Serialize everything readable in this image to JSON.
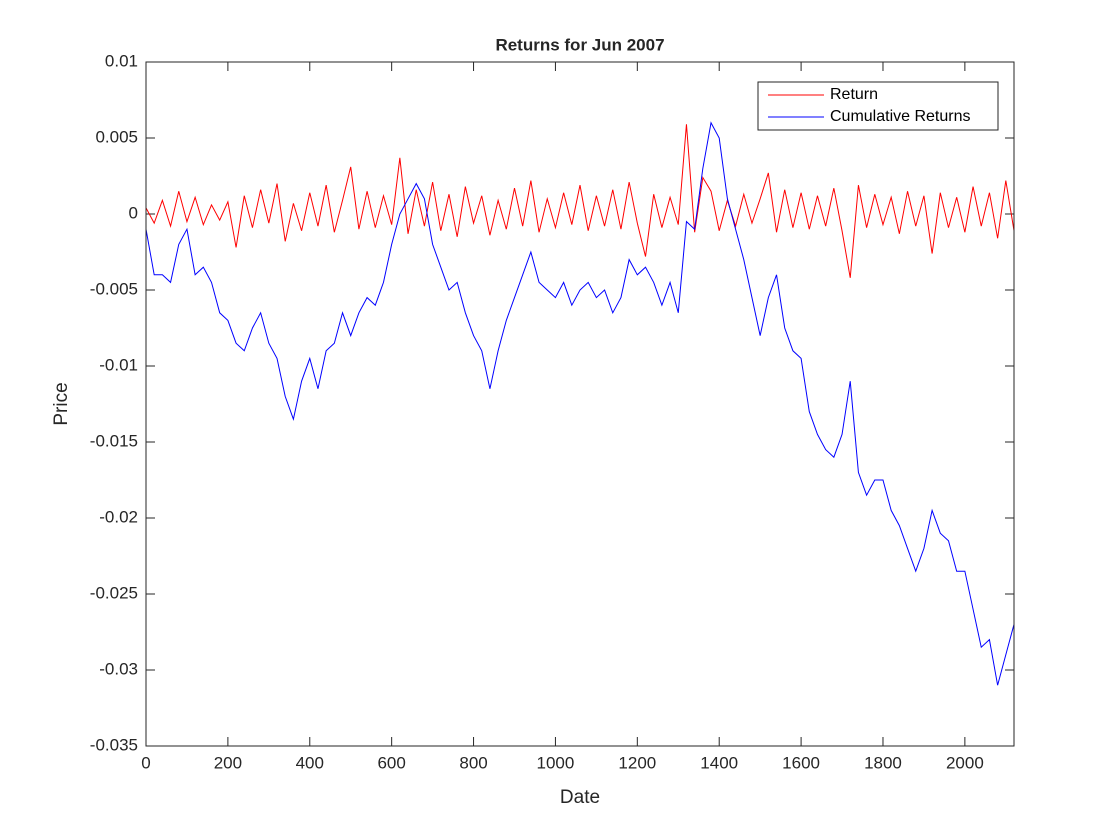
{
  "chart_data": {
    "type": "line",
    "title": "Returns for Jun 2007",
    "xlabel": "Date",
    "ylabel": "Price",
    "x": [
      0,
      20,
      40,
      60,
      80,
      100,
      120,
      140,
      160,
      180,
      200,
      220,
      240,
      260,
      280,
      300,
      320,
      340,
      360,
      380,
      400,
      420,
      440,
      460,
      480,
      500,
      520,
      540,
      560,
      580,
      600,
      620,
      640,
      660,
      680,
      700,
      720,
      740,
      760,
      780,
      800,
      820,
      840,
      860,
      880,
      900,
      920,
      940,
      960,
      980,
      1000,
      1020,
      1040,
      1060,
      1080,
      1100,
      1120,
      1140,
      1160,
      1180,
      1200,
      1220,
      1240,
      1260,
      1280,
      1300,
      1320,
      1340,
      1360,
      1380,
      1400,
      1420,
      1440,
      1460,
      1480,
      1500,
      1520,
      1540,
      1560,
      1580,
      1600,
      1620,
      1640,
      1660,
      1680,
      1700,
      1720,
      1740,
      1760,
      1780,
      1800,
      1820,
      1840,
      1860,
      1880,
      1900,
      1920,
      1940,
      1960,
      1980,
      2000,
      2020,
      2040,
      2060,
      2080,
      2100,
      2120
    ],
    "series": [
      {
        "name": "Return",
        "color": "#ff0000",
        "values": [
          0.0004,
          -0.0006,
          0.0009,
          -0.0008,
          0.0015,
          -0.0005,
          0.0011,
          -0.0007,
          0.0006,
          -0.0004,
          0.0008,
          -0.0022,
          0.0012,
          -0.0009,
          0.0016,
          -0.0006,
          0.002,
          -0.0018,
          0.0007,
          -0.0011,
          0.0014,
          -0.0008,
          0.0019,
          -0.0012,
          0.0009,
          0.0031,
          -0.001,
          0.0015,
          -0.0009,
          0.0012,
          -0.0007,
          0.0037,
          -0.0013,
          0.0016,
          -0.0008,
          0.0021,
          -0.0011,
          0.0013,
          -0.0015,
          0.0018,
          -0.0006,
          0.0012,
          -0.0014,
          0.0009,
          -0.001,
          0.0017,
          -0.0008,
          0.0022,
          -0.0012,
          0.001,
          -0.0009,
          0.0014,
          -0.0007,
          0.0019,
          -0.0011,
          0.0012,
          -0.0008,
          0.0016,
          -0.001,
          0.0021,
          -0.0006,
          -0.0028,
          0.0013,
          -0.0009,
          0.0011,
          -0.0007,
          0.0059,
          -0.0012,
          0.0024,
          0.0015,
          -0.0011,
          0.0009,
          -0.0008,
          0.0013,
          -0.0006,
          0.001,
          0.0027,
          -0.0012,
          0.0016,
          -0.0009,
          0.0014,
          -0.001,
          0.0012,
          -0.0008,
          0.0017,
          -0.0011,
          -0.0042,
          0.0019,
          -0.0009,
          0.0013,
          -0.0007,
          0.0011,
          -0.0013,
          0.0015,
          -0.0008,
          0.0012,
          -0.0026,
          0.0014,
          -0.0009,
          0.0011,
          -0.0012,
          0.0018,
          -0.0008,
          0.0014,
          -0.0016,
          0.0022,
          -0.0011
        ]
      },
      {
        "name": "Cumulative Returns",
        "color": "#0000ff",
        "values": [
          -0.001,
          -0.004,
          -0.004,
          -0.0045,
          -0.002,
          -0.001,
          -0.004,
          -0.0035,
          -0.0045,
          -0.0065,
          -0.007,
          -0.0085,
          -0.009,
          -0.0075,
          -0.0065,
          -0.0085,
          -0.0095,
          -0.012,
          -0.0135,
          -0.011,
          -0.0095,
          -0.0115,
          -0.009,
          -0.0085,
          -0.0065,
          -0.008,
          -0.0065,
          -0.0055,
          -0.006,
          -0.0045,
          -0.002,
          0,
          0.001,
          0.002,
          0.001,
          -0.002,
          -0.0035,
          -0.005,
          -0.0045,
          -0.0065,
          -0.008,
          -0.009,
          -0.0115,
          -0.009,
          -0.007,
          -0.0055,
          -0.004,
          -0.0025,
          -0.0045,
          -0.005,
          -0.0055,
          -0.0045,
          -0.006,
          -0.005,
          -0.0045,
          -0.0055,
          -0.005,
          -0.0065,
          -0.0055,
          -0.003,
          -0.004,
          -0.0035,
          -0.0045,
          -0.006,
          -0.0045,
          -0.0065,
          -0.0005,
          -0.001,
          0.003,
          0.006,
          0.005,
          0.001,
          -0.001,
          -0.003,
          -0.0055,
          -0.008,
          -0.0055,
          -0.004,
          -0.0075,
          -0.009,
          -0.0095,
          -0.013,
          -0.0145,
          -0.0155,
          -0.016,
          -0.0145,
          -0.011,
          -0.017,
          -0.0185,
          -0.0175,
          -0.0175,
          -0.0195,
          -0.0205,
          -0.022,
          -0.0235,
          -0.022,
          -0.0195,
          -0.021,
          -0.0215,
          -0.0235,
          -0.0235,
          -0.026,
          -0.0285,
          -0.028,
          -0.031,
          -0.029,
          -0.027
        ]
      }
    ],
    "xlim": [
      0,
      2120
    ],
    "xticks": [
      0,
      200,
      400,
      600,
      800,
      1000,
      1200,
      1400,
      1600,
      1800,
      2000
    ],
    "ylim": [
      -0.035,
      0.01
    ],
    "yticks": [
      0.01,
      0.005,
      0,
      -0.005,
      -0.01,
      -0.015,
      -0.02,
      -0.025,
      -0.03,
      -0.035
    ],
    "legend": "top-right"
  }
}
